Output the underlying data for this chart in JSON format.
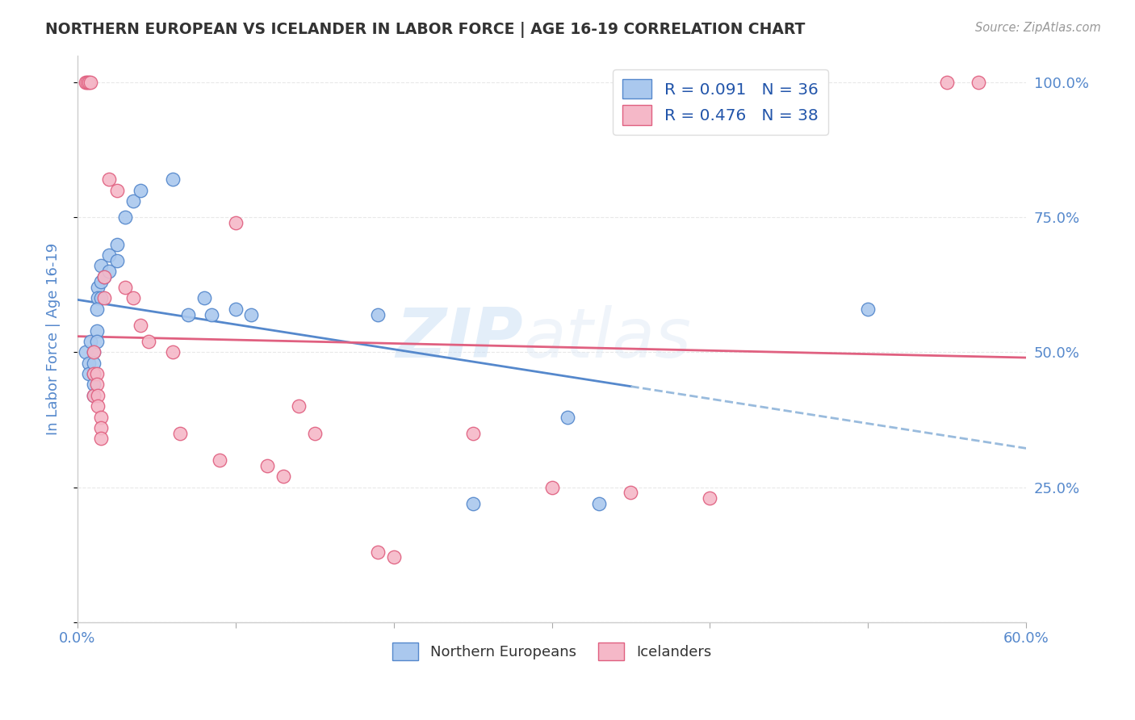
{
  "title": "NORTHERN EUROPEAN VS ICELANDER IN LABOR FORCE | AGE 16-19 CORRELATION CHART",
  "source": "Source: ZipAtlas.com",
  "ylabel": "In Labor Force | Age 16-19",
  "xlim": [
    0.0,
    0.6
  ],
  "ylim": [
    0.0,
    1.05
  ],
  "yticks": [
    0.0,
    0.25,
    0.5,
    0.75,
    1.0
  ],
  "ytick_labels": [
    "",
    "25.0%",
    "50.0%",
    "75.0%",
    "100.0%"
  ],
  "legend_blue_r": "R = 0.091",
  "legend_blue_n": "N = 36",
  "legend_pink_r": "R = 0.476",
  "legend_pink_n": "N = 38",
  "legend_label_blue": "Northern Europeans",
  "legend_label_pink": "Icelanders",
  "blue_color": "#aac8ee",
  "pink_color": "#f5b8c8",
  "trend_blue_solid_color": "#5588cc",
  "trend_blue_dash_color": "#99bbdd",
  "trend_pink_color": "#e06080",
  "blue_scatter": [
    [
      0.005,
      0.5
    ],
    [
      0.007,
      0.48
    ],
    [
      0.007,
      0.46
    ],
    [
      0.008,
      0.52
    ],
    [
      0.01,
      0.5
    ],
    [
      0.01,
      0.46
    ],
    [
      0.01,
      0.44
    ],
    [
      0.01,
      0.42
    ],
    [
      0.012,
      0.54
    ],
    [
      0.012,
      0.52
    ],
    [
      0.013,
      0.62
    ],
    [
      0.013,
      0.6
    ],
    [
      0.015,
      0.66
    ],
    [
      0.015,
      0.63
    ],
    [
      0.015,
      0.6
    ],
    [
      0.017,
      0.64
    ],
    [
      0.02,
      0.68
    ],
    [
      0.02,
      0.65
    ],
    [
      0.025,
      0.7
    ],
    [
      0.025,
      0.67
    ],
    [
      0.03,
      0.75
    ],
    [
      0.035,
      0.78
    ],
    [
      0.04,
      0.8
    ],
    [
      0.01,
      0.48
    ],
    [
      0.012,
      0.58
    ],
    [
      0.06,
      0.82
    ],
    [
      0.07,
      0.57
    ],
    [
      0.08,
      0.6
    ],
    [
      0.085,
      0.57
    ],
    [
      0.1,
      0.58
    ],
    [
      0.11,
      0.57
    ],
    [
      0.19,
      0.57
    ],
    [
      0.25,
      0.22
    ],
    [
      0.31,
      0.38
    ],
    [
      0.33,
      0.22
    ],
    [
      0.5,
      0.58
    ]
  ],
  "pink_scatter": [
    [
      0.005,
      1.0
    ],
    [
      0.006,
      1.0
    ],
    [
      0.007,
      1.0
    ],
    [
      0.008,
      1.0
    ],
    [
      0.01,
      0.42
    ],
    [
      0.01,
      0.46
    ],
    [
      0.01,
      0.5
    ],
    [
      0.012,
      0.46
    ],
    [
      0.012,
      0.44
    ],
    [
      0.013,
      0.42
    ],
    [
      0.013,
      0.4
    ],
    [
      0.015,
      0.38
    ],
    [
      0.015,
      0.36
    ],
    [
      0.015,
      0.34
    ],
    [
      0.017,
      0.64
    ],
    [
      0.017,
      0.6
    ],
    [
      0.02,
      0.82
    ],
    [
      0.025,
      0.8
    ],
    [
      0.03,
      0.62
    ],
    [
      0.035,
      0.6
    ],
    [
      0.04,
      0.55
    ],
    [
      0.045,
      0.52
    ],
    [
      0.06,
      0.5
    ],
    [
      0.065,
      0.35
    ],
    [
      0.09,
      0.3
    ],
    [
      0.1,
      0.74
    ],
    [
      0.12,
      0.29
    ],
    [
      0.13,
      0.27
    ],
    [
      0.14,
      0.4
    ],
    [
      0.15,
      0.35
    ],
    [
      0.19,
      0.13
    ],
    [
      0.2,
      0.12
    ],
    [
      0.25,
      0.35
    ],
    [
      0.3,
      0.25
    ],
    [
      0.35,
      0.24
    ],
    [
      0.4,
      0.23
    ],
    [
      0.55,
      1.0
    ],
    [
      0.57,
      1.0
    ]
  ],
  "watermark_zip": "ZIP",
  "watermark_atlas": "atlas",
  "grid_color": "#e8e8e8",
  "background_color": "#ffffff",
  "text_color_blue": "#5588cc",
  "text_color_title": "#333333",
  "legend_text_color": "#2255aa"
}
